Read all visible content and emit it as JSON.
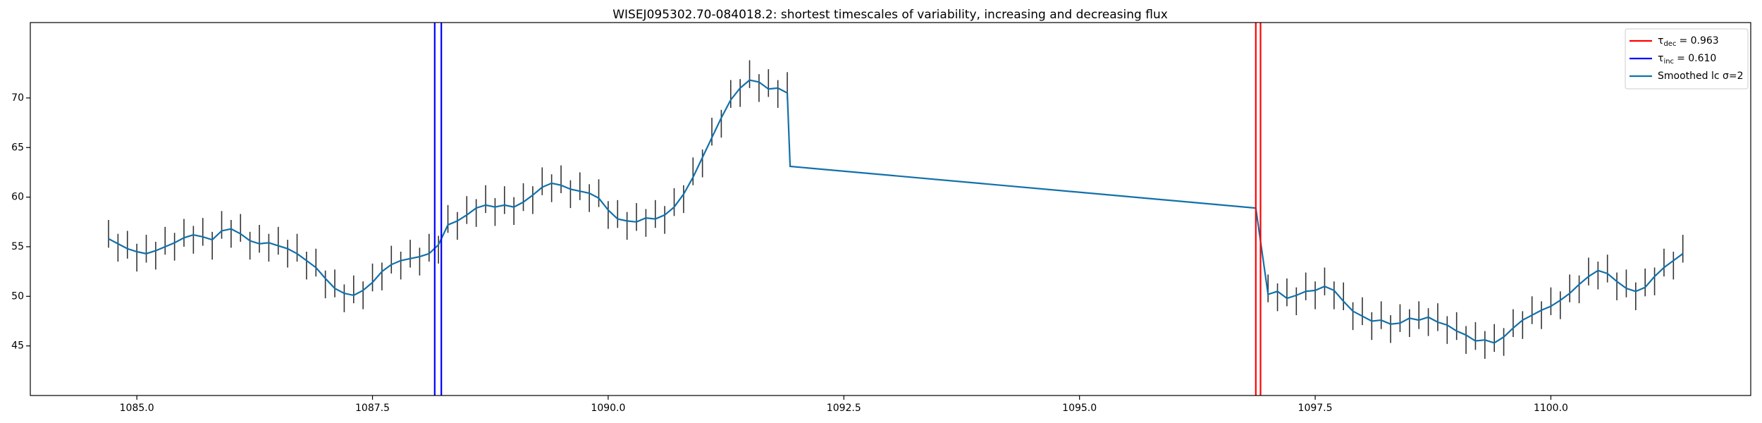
{
  "chart_data": {
    "type": "errorbar",
    "title": "WISEJ095302.70-084018.2: shortest timescales of variability, increasing and decreasing flux",
    "xlim": [
      1083.87,
      1102.12
    ],
    "ylim": [
      40.0,
      77.6
    ],
    "xticks": [
      {
        "value": 1085,
        "label": "1085.0"
      },
      {
        "value": 1087.5,
        "label": "1087.5"
      },
      {
        "value": 1090,
        "label": "1090.0"
      },
      {
        "value": 1092.5,
        "label": "1092.5"
      },
      {
        "value": 1095,
        "label": "1095.0"
      },
      {
        "value": 1097.5,
        "label": "1097.5"
      },
      {
        "value": 1100,
        "label": "1100.0"
      }
    ],
    "yticks": [
      45,
      50,
      55,
      60,
      65,
      70
    ],
    "observations": {
      "color": "#333333",
      "yerr": 1.4,
      "x": [
        1084.7,
        1084.8,
        1084.9,
        1085.0,
        1085.1,
        1085.2,
        1085.3,
        1085.4,
        1085.5,
        1085.6,
        1085.7,
        1085.8,
        1085.9,
        1086.0,
        1086.1,
        1086.2,
        1086.3,
        1086.4,
        1086.5,
        1086.6,
        1086.7,
        1086.8,
        1086.9,
        1087.0,
        1087.1,
        1087.2,
        1087.3,
        1087.4,
        1087.5,
        1087.6,
        1087.7,
        1087.8,
        1087.9,
        1088.0,
        1088.1,
        1088.2,
        1088.3,
        1088.4,
        1088.5,
        1088.6,
        1088.7,
        1088.8,
        1088.9,
        1089.0,
        1089.1,
        1089.2,
        1089.3,
        1089.4,
        1089.5,
        1089.6,
        1089.7,
        1089.8,
        1089.9,
        1090.0,
        1090.1,
        1090.2,
        1090.3,
        1090.4,
        1090.5,
        1090.6,
        1090.7,
        1090.8,
        1090.9,
        1091.0,
        1091.1,
        1091.2,
        1091.3,
        1091.4,
        1091.5,
        1091.6,
        1091.7,
        1091.8,
        1091.9,
        1097.0,
        1097.1,
        1097.2,
        1097.3,
        1097.4,
        1097.5,
        1097.6,
        1097.7,
        1097.8,
        1097.9,
        1098.0,
        1098.1,
        1098.2,
        1098.3,
        1098.4,
        1098.5,
        1098.6,
        1098.7,
        1098.8,
        1098.9,
        1099.0,
        1099.1,
        1099.2,
        1099.3,
        1099.4,
        1099.5,
        1099.6,
        1099.7,
        1099.8,
        1099.9,
        1100.0,
        1100.1,
        1100.2,
        1100.3,
        1100.4,
        1100.5,
        1100.6,
        1100.7,
        1100.8,
        1100.9,
        1101.0,
        1101.1,
        1101.2,
        1101.3,
        1101.4
      ],
      "values": [
        56.3,
        54.9,
        55.2,
        53.9,
        54.8,
        54.1,
        55.6,
        55.0,
        56.4,
        55.7,
        56.5,
        55.1,
        57.2,
        56.3,
        56.9,
        55.1,
        55.8,
        54.9,
        55.6,
        54.3,
        54.9,
        53.1,
        53.4,
        51.2,
        51.3,
        49.8,
        50.7,
        50.1,
        51.9,
        52.0,
        53.7,
        53.1,
        54.3,
        53.5,
        54.9,
        54.7,
        57.8,
        57.1,
        58.7,
        58.4,
        59.8,
        58.5,
        59.7,
        58.6,
        60.0,
        59.7,
        61.6,
        60.9,
        61.8,
        60.3,
        61.1,
        59.9,
        60.4,
        58.2,
        58.3,
        57.1,
        58.0,
        57.4,
        58.3,
        57.7,
        59.5,
        59.8,
        62.6,
        63.4,
        66.6,
        67.4,
        70.4,
        70.5,
        72.4,
        71.0,
        71.5,
        70.4,
        71.2,
        50.8,
        49.9,
        50.4,
        49.5,
        51.0,
        50.1,
        51.5,
        50.1,
        50.0,
        48.0,
        48.5,
        47.0,
        48.1,
        46.7,
        47.8,
        47.3,
        48.1,
        47.4,
        47.9,
        46.6,
        47.0,
        45.6,
        46.0,
        45.1,
        45.8,
        45.4,
        47.3,
        47.1,
        48.6,
        48.1,
        49.5,
        49.1,
        50.8,
        50.7,
        52.5,
        52.1,
        52.8,
        51.0,
        51.3,
        50.0,
        51.4,
        51.5,
        53.4,
        53.1,
        54.8
      ]
    },
    "series": [
      {
        "name": "Smoothed lc σ=2",
        "color": "#1170aa",
        "x": [
          1084.7,
          1084.8,
          1084.9,
          1085.0,
          1085.1,
          1085.2,
          1085.3,
          1085.4,
          1085.5,
          1085.6,
          1085.7,
          1085.8,
          1085.9,
          1086.0,
          1086.1,
          1086.2,
          1086.3,
          1086.4,
          1086.5,
          1086.6,
          1086.7,
          1086.8,
          1086.9,
          1087.0,
          1087.1,
          1087.2,
          1087.3,
          1087.4,
          1087.5,
          1087.6,
          1087.7,
          1087.8,
          1087.9,
          1088.0,
          1088.1,
          1088.2,
          1088.3,
          1088.4,
          1088.5,
          1088.6,
          1088.7,
          1088.8,
          1088.9,
          1089.0,
          1089.1,
          1089.2,
          1089.3,
          1089.4,
          1089.5,
          1089.6,
          1089.7,
          1089.8,
          1089.9,
          1090.0,
          1090.1,
          1090.2,
          1090.3,
          1090.4,
          1090.5,
          1090.6,
          1090.7,
          1090.8,
          1090.9,
          1091.0,
          1091.1,
          1091.2,
          1091.3,
          1091.4,
          1091.5,
          1091.6,
          1091.7,
          1091.8,
          1091.9,
          1091.93,
          1096.87,
          1097.0,
          1097.1,
          1097.2,
          1097.3,
          1097.4,
          1097.5,
          1097.6,
          1097.7,
          1097.8,
          1097.9,
          1098.0,
          1098.1,
          1098.2,
          1098.3,
          1098.4,
          1098.5,
          1098.6,
          1098.7,
          1098.8,
          1098.9,
          1099.0,
          1099.1,
          1099.2,
          1099.3,
          1099.4,
          1099.5,
          1099.6,
          1099.7,
          1099.8,
          1099.9,
          1100.0,
          1100.1,
          1100.2,
          1100.3,
          1100.4,
          1100.5,
          1100.6,
          1100.7,
          1100.8,
          1100.9,
          1101.0,
          1101.1,
          1101.2,
          1101.3,
          1101.4
        ],
        "values": [
          55.8,
          55.3,
          54.8,
          54.5,
          54.3,
          54.6,
          55.0,
          55.4,
          55.9,
          56.2,
          56.0,
          55.7,
          56.6,
          56.8,
          56.3,
          55.6,
          55.3,
          55.4,
          55.1,
          54.8,
          54.3,
          53.6,
          52.9,
          51.8,
          50.8,
          50.3,
          50.1,
          50.6,
          51.4,
          52.5,
          53.2,
          53.6,
          53.8,
          54.0,
          54.3,
          55.2,
          57.2,
          57.6,
          58.2,
          58.9,
          59.2,
          59.0,
          59.2,
          59.0,
          59.5,
          60.2,
          61.0,
          61.4,
          61.2,
          60.8,
          60.6,
          60.4,
          59.9,
          58.7,
          57.8,
          57.6,
          57.5,
          57.9,
          57.8,
          58.2,
          59.0,
          60.3,
          62.0,
          64.0,
          66.0,
          68.0,
          69.8,
          71.0,
          71.8,
          71.6,
          70.9,
          71.0,
          70.5,
          63.1,
          58.9,
          50.2,
          50.5,
          49.8,
          50.1,
          50.5,
          50.6,
          51.0,
          50.6,
          49.5,
          48.5,
          48.0,
          47.5,
          47.6,
          47.2,
          47.3,
          47.8,
          47.6,
          47.9,
          47.4,
          47.1,
          46.5,
          46.1,
          45.5,
          45.6,
          45.3,
          45.9,
          46.8,
          47.6,
          48.1,
          48.6,
          49.0,
          49.6,
          50.3,
          51.2,
          52.0,
          52.6,
          52.3,
          51.5,
          50.8,
          50.5,
          50.9,
          52.0,
          52.9,
          53.6,
          54.3
        ]
      }
    ],
    "vlines": [
      {
        "symbol": "τ",
        "subscript": "dec",
        "text": "= 0.963",
        "color": "#ff0000",
        "x": [
          1096.87,
          1096.92
        ]
      },
      {
        "symbol": "τ",
        "subscript": "inc",
        "text": "= 0.610",
        "color": "#0000ff",
        "x": [
          1088.16,
          1088.23
        ]
      }
    ],
    "legend_loc": "upper right"
  }
}
